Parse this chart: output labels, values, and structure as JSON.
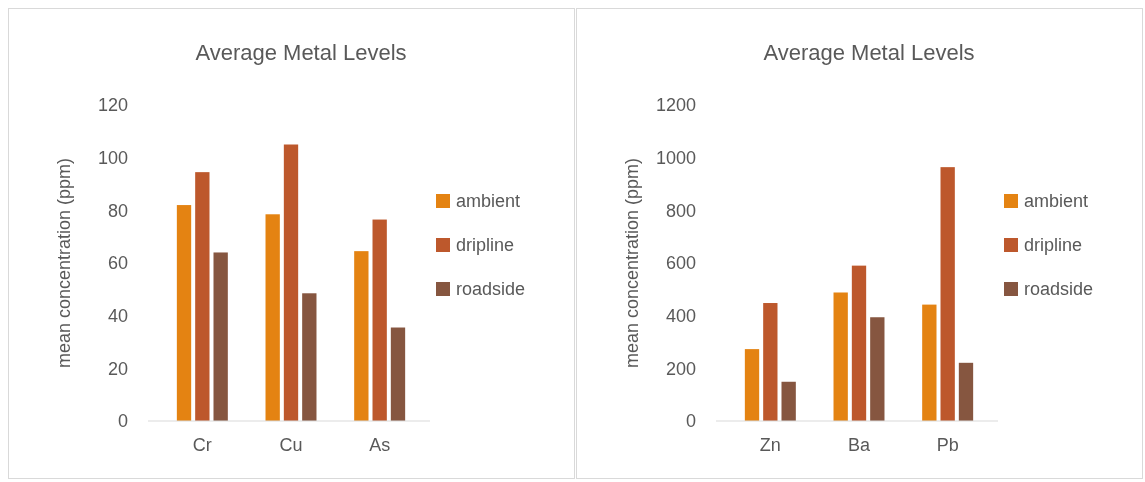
{
  "chart_data": [
    {
      "type": "bar",
      "title": "Average Metal Levels",
      "ylabel": "mean concentration (ppm)",
      "categories": [
        "Cr",
        "Cu",
        "As"
      ],
      "series": [
        {
          "name": "ambient",
          "color": "#e48312",
          "values": [
            82,
            78.5,
            64.5
          ]
        },
        {
          "name": "dripline",
          "color": "#bd582c",
          "values": [
            94.5,
            105,
            76.5
          ]
        },
        {
          "name": "roadside",
          "color": "#865640",
          "values": [
            64,
            48.5,
            35.5
          ]
        }
      ],
      "ylim": [
        0,
        120
      ],
      "yticks": [
        0,
        20,
        40,
        60,
        80,
        100,
        120
      ],
      "grid": false,
      "legend": "right"
    },
    {
      "type": "bar",
      "title": "Average Metal Levels",
      "ylabel": "mean concentration (ppm)",
      "categories": [
        "Zn",
        "Ba",
        "Pb"
      ],
      "series": [
        {
          "name": "ambient",
          "color": "#e48312",
          "values": [
            273,
            488,
            442
          ]
        },
        {
          "name": "dripline",
          "color": "#bd582c",
          "values": [
            448,
            590,
            964
          ]
        },
        {
          "name": "roadside",
          "color": "#865640",
          "values": [
            149,
            394,
            221
          ]
        }
      ],
      "ylim": [
        0,
        1200
      ],
      "yticks": [
        0,
        200,
        400,
        600,
        800,
        1000,
        1200
      ],
      "grid": false,
      "legend": "right"
    }
  ]
}
